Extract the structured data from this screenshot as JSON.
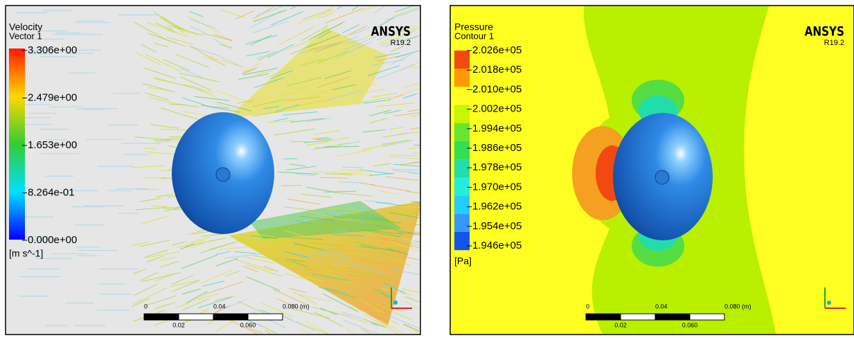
{
  "panels": [
    {
      "legend": {
        "title": "Velocity",
        "subtitle": "Vector 1",
        "labels": [
          "3.306e+00",
          "2.479e+00",
          "1.653e+00",
          "8.264e-01",
          "0.000e+00"
        ],
        "unit": "[m s^-1]"
      },
      "logo": "ANSYS",
      "version": "R19.2",
      "scale": {
        "top": [
          "0",
          "0.04",
          "0.080 (m)"
        ],
        "bottom": [
          "0.02",
          "0.060"
        ]
      }
    },
    {
      "legend": {
        "title": "Pressure",
        "subtitle": "Contour 1",
        "labels": [
          "2.026e+05",
          "2.018e+05",
          "2.010e+05",
          "2.002e+05",
          "1.994e+05",
          "1.986e+05",
          "1.978e+05",
          "1.970e+05",
          "1.962e+05",
          "1.954e+05",
          "1.946e+05"
        ],
        "unit": "[Pa]"
      },
      "logo": "ANSYS",
      "version": "R19.2",
      "scale": {
        "top": [
          "0",
          "0.04",
          "0.080 (m)"
        ],
        "bottom": [
          "0.02",
          "0.060"
        ]
      }
    }
  ]
}
